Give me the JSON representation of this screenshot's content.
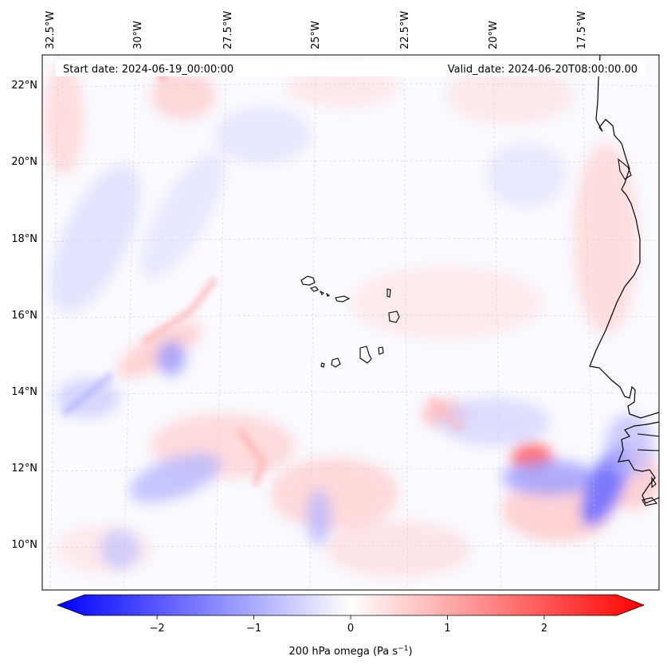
{
  "header": {
    "start_date": "Start date: 2024-06-19_00:00:00",
    "valid_date": "Valid_date: 2024-06-20T08:00:00.00"
  },
  "map": {
    "lon_labels": [
      "32.5°W",
      "30°W",
      "27.5°W",
      "25°W",
      "22.5°W",
      "20°W",
      "17.5°W"
    ],
    "lat_labels": [
      "22°N",
      "20°N",
      "18°N",
      "16°N",
      "14°N",
      "12°N",
      "10°N"
    ],
    "lon_range": [
      -33.0,
      -15.0
    ],
    "lat_range": [
      8.9,
      22.8
    ],
    "gridlines": true,
    "background_color": "#fafaff"
  },
  "colorbar": {
    "label_main": "200 hPa omega (Pa s",
    "label_sup": "−1",
    "label_close": ")",
    "ticks": [
      "−2",
      "−1",
      "0",
      "1",
      "2"
    ],
    "tick_values": [
      -2,
      -1,
      0,
      1,
      2
    ],
    "range": [
      -2.75,
      2.75
    ],
    "extend": "both",
    "colormap": "bwr",
    "color_min": "#0000ff",
    "color_mid": "#ffffff",
    "color_max": "#ff0000"
  }
}
